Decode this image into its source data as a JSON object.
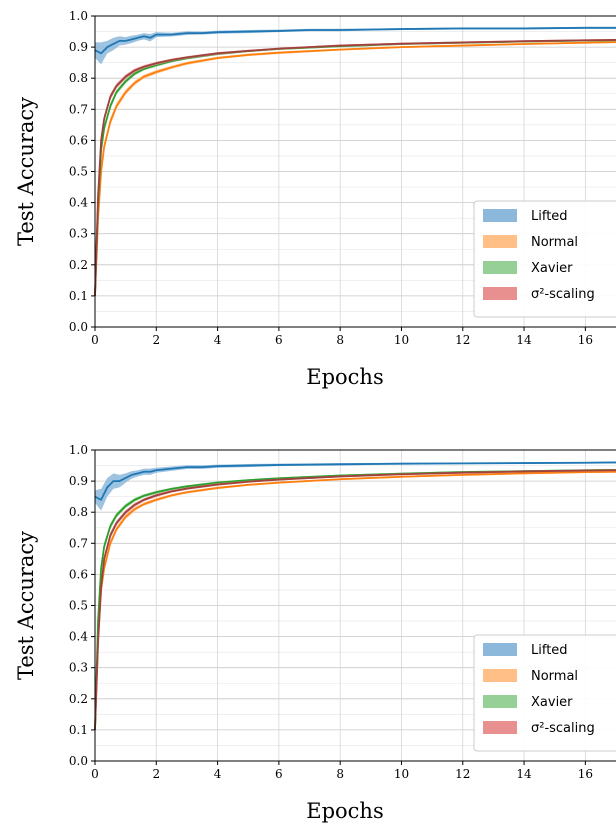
{
  "chart_data": [
    {
      "type": "line",
      "title": "",
      "xlabel": "Epochs",
      "ylabel": "Test Accuracy",
      "xlim": [
        0,
        17
      ],
      "ylim": [
        0,
        1.0
      ],
      "xticks": [
        "0",
        "2",
        "4",
        "6",
        "8",
        "10",
        "12",
        "14",
        "16"
      ],
      "yticks": [
        "0.0",
        "0.1",
        "0.2",
        "0.3",
        "0.4",
        "0.5",
        "0.6",
        "0.7",
        "0.8",
        "0.9",
        "1.0"
      ],
      "grid": true,
      "legend_position": "lower-right",
      "legend": [
        "Lifted",
        "Normal",
        "Xavier",
        "σ²-scaling"
      ],
      "series": [
        {
          "name": "Lifted",
          "color": "#1f77b4",
          "band_color": "#8cb8dc",
          "x": [
            0,
            0.2,
            0.4,
            0.6,
            0.8,
            1,
            1.2,
            1.4,
            1.6,
            1.8,
            2,
            2.5,
            3,
            3.5,
            4,
            5,
            6,
            7,
            8,
            10,
            12,
            14,
            16,
            17
          ],
          "y": [
            0.89,
            0.88,
            0.9,
            0.91,
            0.92,
            0.92,
            0.925,
            0.93,
            0.935,
            0.93,
            0.94,
            0.94,
            0.945,
            0.945,
            0.948,
            0.95,
            0.952,
            0.955,
            0.955,
            0.958,
            0.96,
            0.96,
            0.962,
            0.962
          ],
          "band": [
            0.025,
            0.035,
            0.02,
            0.02,
            0.015,
            0.012,
            0.012,
            0.01,
            0.01,
            0.012,
            0.008,
            0.006,
            0.006,
            0.005,
            0.005,
            0.005,
            0.004,
            0.004,
            0.004,
            0.003,
            0.003,
            0.003,
            0.003,
            0.003
          ]
        },
        {
          "name": "Normal",
          "color": "#ff7f0e",
          "band_color": "#ffbf86",
          "x": [
            0,
            0.1,
            0.2,
            0.3,
            0.5,
            0.7,
            1,
            1.3,
            1.6,
            2,
            2.5,
            3,
            4,
            5,
            6,
            8,
            10,
            12,
            14,
            16,
            17
          ],
          "y": [
            0.1,
            0.35,
            0.5,
            0.58,
            0.66,
            0.71,
            0.755,
            0.785,
            0.805,
            0.82,
            0.835,
            0.848,
            0.865,
            0.875,
            0.882,
            0.892,
            0.9,
            0.905,
            0.91,
            0.914,
            0.916
          ],
          "band": [
            0.01,
            0.015,
            0.015,
            0.012,
            0.012,
            0.01,
            0.008,
            0.007,
            0.006,
            0.006,
            0.005,
            0.005,
            0.004,
            0.004,
            0.004,
            0.003,
            0.003,
            0.003,
            0.003,
            0.003,
            0.003
          ]
        },
        {
          "name": "Xavier",
          "color": "#2ca02c",
          "band_color": "#96d096",
          "x": [
            0,
            0.1,
            0.2,
            0.3,
            0.5,
            0.7,
            1,
            1.3,
            1.6,
            2,
            2.5,
            3,
            4,
            5,
            6,
            8,
            10,
            12,
            14,
            16,
            17
          ],
          "y": [
            0.1,
            0.4,
            0.57,
            0.64,
            0.71,
            0.755,
            0.79,
            0.815,
            0.83,
            0.842,
            0.855,
            0.864,
            0.878,
            0.887,
            0.894,
            0.903,
            0.91,
            0.914,
            0.918,
            0.921,
            0.922
          ],
          "band": [
            0.01,
            0.015,
            0.015,
            0.012,
            0.01,
            0.008,
            0.007,
            0.006,
            0.005,
            0.005,
            0.004,
            0.004,
            0.004,
            0.003,
            0.003,
            0.003,
            0.003,
            0.003,
            0.003,
            0.003,
            0.003
          ]
        },
        {
          "name": "σ²-scaling",
          "color": "#a0413c",
          "band_color": "#e89090",
          "x": [
            0,
            0.1,
            0.2,
            0.3,
            0.5,
            0.7,
            1,
            1.3,
            1.6,
            2,
            2.5,
            3,
            4,
            5,
            6,
            8,
            10,
            12,
            14,
            16,
            17
          ],
          "y": [
            0.1,
            0.42,
            0.6,
            0.67,
            0.74,
            0.775,
            0.805,
            0.825,
            0.837,
            0.848,
            0.859,
            0.867,
            0.88,
            0.888,
            0.895,
            0.905,
            0.911,
            0.915,
            0.919,
            0.922,
            0.923
          ],
          "band": [
            0.01,
            0.015,
            0.015,
            0.012,
            0.01,
            0.008,
            0.007,
            0.006,
            0.005,
            0.005,
            0.004,
            0.004,
            0.004,
            0.003,
            0.003,
            0.003,
            0.003,
            0.003,
            0.003,
            0.003,
            0.003
          ]
        }
      ]
    },
    {
      "type": "line",
      "title": "",
      "xlabel": "Epochs",
      "ylabel": "Test Accuracy",
      "xlim": [
        0,
        17
      ],
      "ylim": [
        0,
        1.0
      ],
      "xticks": [
        "0",
        "2",
        "4",
        "6",
        "8",
        "10",
        "12",
        "14",
        "16"
      ],
      "yticks": [
        "0.0",
        "0.1",
        "0.2",
        "0.3",
        "0.4",
        "0.5",
        "0.6",
        "0.7",
        "0.8",
        "0.9",
        "1.0"
      ],
      "grid": true,
      "legend_position": "lower-right",
      "legend": [
        "Lifted",
        "Normal",
        "Xavier",
        "σ²-scaling"
      ],
      "series": [
        {
          "name": "Lifted",
          "color": "#1f77b4",
          "band_color": "#8cb8dc",
          "x": [
            0,
            0.2,
            0.4,
            0.6,
            0.8,
            1,
            1.2,
            1.4,
            1.6,
            1.8,
            2,
            2.5,
            3,
            3.5,
            4,
            5,
            6,
            7,
            8,
            10,
            12,
            14,
            16,
            17
          ],
          "y": [
            0.85,
            0.84,
            0.88,
            0.9,
            0.9,
            0.91,
            0.92,
            0.925,
            0.93,
            0.93,
            0.935,
            0.94,
            0.945,
            0.945,
            0.948,
            0.95,
            0.952,
            0.953,
            0.954,
            0.956,
            0.957,
            0.958,
            0.959,
            0.96
          ],
          "band": [
            0.02,
            0.035,
            0.03,
            0.025,
            0.02,
            0.015,
            0.012,
            0.01,
            0.01,
            0.01,
            0.008,
            0.007,
            0.006,
            0.006,
            0.005,
            0.005,
            0.004,
            0.004,
            0.004,
            0.003,
            0.003,
            0.003,
            0.003,
            0.003
          ]
        },
        {
          "name": "Normal",
          "color": "#ff7f0e",
          "band_color": "#ffbf86",
          "x": [
            0,
            0.1,
            0.2,
            0.3,
            0.5,
            0.7,
            1,
            1.3,
            1.6,
            2,
            2.5,
            3,
            4,
            5,
            6,
            8,
            10,
            12,
            14,
            16,
            17
          ],
          "y": [
            0.1,
            0.4,
            0.55,
            0.62,
            0.7,
            0.745,
            0.785,
            0.81,
            0.826,
            0.84,
            0.854,
            0.864,
            0.878,
            0.888,
            0.895,
            0.906,
            0.914,
            0.92,
            0.925,
            0.929,
            0.93
          ],
          "band": [
            0.01,
            0.015,
            0.015,
            0.012,
            0.01,
            0.008,
            0.007,
            0.006,
            0.005,
            0.005,
            0.004,
            0.004,
            0.004,
            0.003,
            0.003,
            0.003,
            0.003,
            0.003,
            0.003,
            0.003,
            0.003
          ]
        },
        {
          "name": "Xavier",
          "color": "#2ca02c",
          "band_color": "#96d096",
          "x": [
            0,
            0.1,
            0.2,
            0.3,
            0.5,
            0.7,
            1,
            1.3,
            1.6,
            2,
            2.5,
            3,
            4,
            5,
            6,
            8,
            10,
            12,
            14,
            16,
            17
          ],
          "y": [
            0.1,
            0.45,
            0.62,
            0.69,
            0.755,
            0.79,
            0.82,
            0.84,
            0.853,
            0.864,
            0.875,
            0.883,
            0.895,
            0.903,
            0.909,
            0.918,
            0.924,
            0.929,
            0.932,
            0.935,
            0.936
          ],
          "band": [
            0.01,
            0.015,
            0.015,
            0.012,
            0.01,
            0.008,
            0.007,
            0.006,
            0.005,
            0.005,
            0.004,
            0.004,
            0.004,
            0.003,
            0.003,
            0.003,
            0.003,
            0.003,
            0.003,
            0.003,
            0.003
          ]
        },
        {
          "name": "σ²-scaling",
          "color": "#a0413c",
          "band_color": "#e89090",
          "x": [
            0,
            0.1,
            0.2,
            0.3,
            0.5,
            0.7,
            1,
            1.3,
            1.6,
            2,
            2.5,
            3,
            4,
            5,
            6,
            8,
            10,
            12,
            14,
            16,
            17
          ],
          "y": [
            0.1,
            0.38,
            0.56,
            0.65,
            0.725,
            0.765,
            0.8,
            0.824,
            0.84,
            0.854,
            0.867,
            0.876,
            0.889,
            0.898,
            0.905,
            0.915,
            0.922,
            0.927,
            0.931,
            0.934,
            0.935
          ],
          "band": [
            0.01,
            0.015,
            0.015,
            0.012,
            0.01,
            0.008,
            0.007,
            0.006,
            0.005,
            0.005,
            0.004,
            0.004,
            0.004,
            0.003,
            0.003,
            0.003,
            0.003,
            0.003,
            0.003,
            0.003,
            0.003
          ]
        }
      ]
    }
  ]
}
